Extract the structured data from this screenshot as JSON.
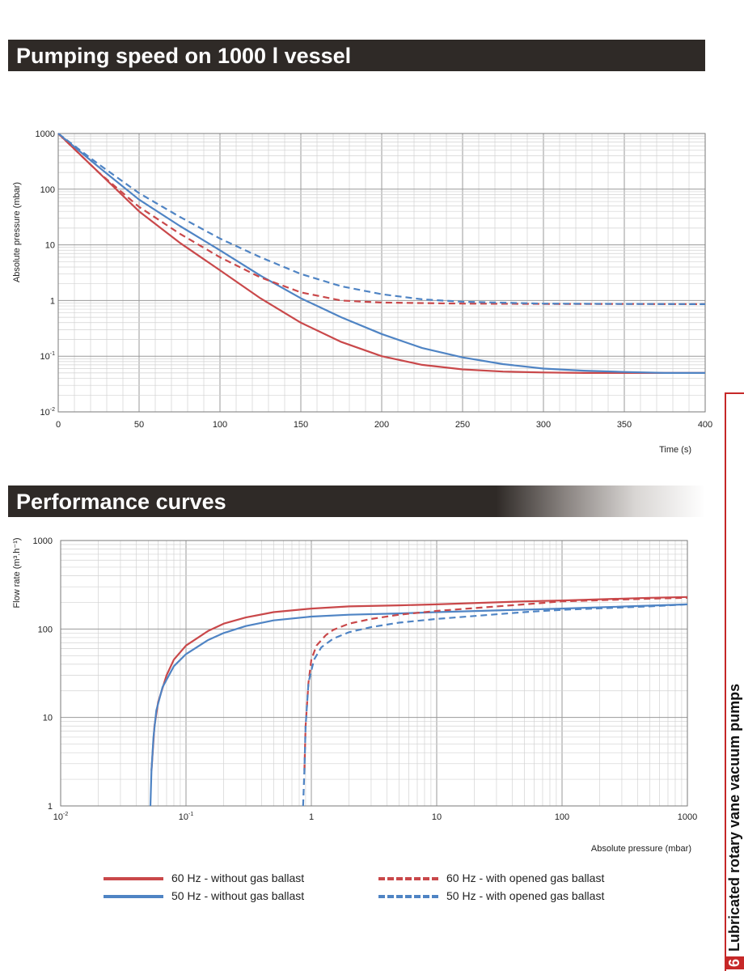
{
  "banners": {
    "pumping": "Pumping speed on 1000 l vessel",
    "performance": "Performance curves"
  },
  "legend": [
    {
      "label": "60 Hz - without gas ballast",
      "color": "#c9484a",
      "style": "solid"
    },
    {
      "label": "50 Hz - without gas ballast",
      "color": "#4f84c4",
      "style": "solid"
    },
    {
      "label": "60 Hz - with opened gas ballast",
      "color": "#c9484a",
      "style": "dashed"
    },
    {
      "label": "50 Hz - with opened gas ballast",
      "color": "#4f84c4",
      "style": "dashed"
    }
  ],
  "sidebar": {
    "number": "6",
    "title": "Lubricated rotary vane vacuum pumps"
  },
  "colors": {
    "red": "#c9484a",
    "blue": "#4f84c4",
    "banner": "#2f2a27",
    "accent": "#c62828"
  },
  "chart_data": [
    {
      "type": "line",
      "title": "Pumping speed on 1000 l vessel",
      "xlabel": "Time (s)",
      "ylabel": "Absolute pressure (mbar)",
      "xlim": [
        0,
        400
      ],
      "ylim": [
        0.01,
        1000
      ],
      "yscale": "log",
      "grid": true,
      "x_ticks": [
        "0",
        "50",
        "100",
        "150",
        "200",
        "250",
        "300",
        "350",
        "400"
      ],
      "y_ticks": [
        {
          "base": "10",
          "exp": "-2"
        },
        {
          "base": "10",
          "exp": "-1"
        },
        {
          "base": "1",
          "exp": ""
        },
        {
          "base": "10",
          "exp": ""
        },
        {
          "base": "100",
          "exp": ""
        },
        {
          "base": "1000",
          "exp": ""
        }
      ],
      "series": [
        {
          "name": "60 Hz - without gas ballast",
          "style": "solid",
          "color": "#c9484a",
          "x": [
            0,
            25,
            50,
            75,
            100,
            125,
            150,
            175,
            200,
            225,
            250,
            275,
            300,
            325,
            350,
            375,
            400
          ],
          "y": [
            1000,
            200,
            40,
            11,
            3.5,
            1.1,
            0.4,
            0.18,
            0.1,
            0.07,
            0.058,
            0.053,
            0.051,
            0.05,
            0.05,
            0.05,
            0.05
          ]
        },
        {
          "name": "50 Hz - without gas ballast",
          "style": "solid",
          "color": "#4f84c4",
          "x": [
            0,
            25,
            50,
            75,
            100,
            125,
            150,
            175,
            200,
            225,
            250,
            275,
            300,
            325,
            350,
            375,
            400
          ],
          "y": [
            1000,
            250,
            65,
            22,
            8,
            2.8,
            1.1,
            0.5,
            0.25,
            0.14,
            0.095,
            0.072,
            0.06,
            0.055,
            0.052,
            0.05,
            0.05
          ]
        },
        {
          "name": "60 Hz - with opened gas ballast",
          "style": "dashed",
          "color": "#c9484a",
          "x": [
            0,
            25,
            50,
            75,
            100,
            125,
            150,
            175,
            200,
            250,
            300,
            350,
            400
          ],
          "y": [
            1000,
            200,
            48,
            16,
            6,
            2.6,
            1.4,
            1.0,
            0.92,
            0.88,
            0.87,
            0.87,
            0.86
          ]
        },
        {
          "name": "50 Hz - with opened gas ballast",
          "style": "dashed",
          "color": "#4f84c4",
          "x": [
            0,
            25,
            50,
            75,
            100,
            125,
            150,
            175,
            200,
            225,
            250,
            300,
            350,
            400
          ],
          "y": [
            1000,
            280,
            85,
            32,
            13,
            6,
            3,
            1.8,
            1.3,
            1.05,
            0.95,
            0.88,
            0.87,
            0.86
          ]
        }
      ]
    },
    {
      "type": "line",
      "title": "Performance curves",
      "xlabel": "Absolute pressure (mbar)",
      "ylabel": "Flow rate (m³.h⁻¹)",
      "xlim": [
        0.01,
        1000
      ],
      "ylim": [
        1,
        1000
      ],
      "xscale": "log",
      "yscale": "log",
      "grid": true,
      "x_ticks": [
        {
          "base": "10",
          "exp": "-2"
        },
        {
          "base": "10",
          "exp": "-1"
        },
        {
          "base": "1",
          "exp": ""
        },
        {
          "base": "10",
          "exp": ""
        },
        {
          "base": "100",
          "exp": ""
        },
        {
          "base": "1000",
          "exp": ""
        }
      ],
      "y_ticks": [
        "1",
        "10",
        "100",
        "1000"
      ],
      "series": [
        {
          "name": "60 Hz - without gas ballast",
          "style": "solid",
          "color": "#c9484a",
          "x": [
            0.053,
            0.056,
            0.06,
            0.07,
            0.08,
            0.1,
            0.15,
            0.2,
            0.3,
            0.5,
            1,
            2,
            5,
            10,
            50,
            100,
            500,
            1000
          ],
          "y": [
            2.5,
            8,
            15,
            30,
            45,
            65,
            95,
            115,
            135,
            155,
            170,
            180,
            185,
            190,
            205,
            210,
            225,
            230
          ]
        },
        {
          "name": "50 Hz - without gas ballast",
          "style": "solid",
          "color": "#4f84c4",
          "x": [
            0.052,
            0.053,
            0.055,
            0.058,
            0.065,
            0.08,
            0.1,
            0.15,
            0.2,
            0.3,
            0.5,
            1,
            2,
            5,
            10,
            100,
            1000
          ],
          "y": [
            1,
            2.5,
            6,
            12,
            22,
            38,
            52,
            75,
            90,
            108,
            125,
            138,
            145,
            150,
            155,
            170,
            190
          ]
        },
        {
          "name": "60 Hz - with opened gas ballast",
          "style": "dashed",
          "color": "#c9484a",
          "x": [
            0.88,
            0.9,
            0.95,
            1,
            1.1,
            1.3,
            1.5,
            2,
            3,
            5,
            10,
            50,
            100,
            500,
            1000
          ],
          "y": [
            2.5,
            8,
            25,
            45,
            65,
            85,
            98,
            115,
            130,
            145,
            160,
            190,
            205,
            220,
            225
          ]
        },
        {
          "name": "50 Hz - with opened gas ballast",
          "style": "dashed",
          "color": "#4f84c4",
          "x": [
            0.86,
            0.88,
            0.9,
            0.95,
            1.05,
            1.2,
            1.5,
            2,
            3,
            5,
            10,
            50,
            100,
            500,
            1000
          ],
          "y": [
            1,
            2.5,
            8,
            25,
            45,
            62,
            78,
            92,
            105,
            118,
            130,
            155,
            165,
            180,
            190
          ]
        }
      ]
    }
  ]
}
